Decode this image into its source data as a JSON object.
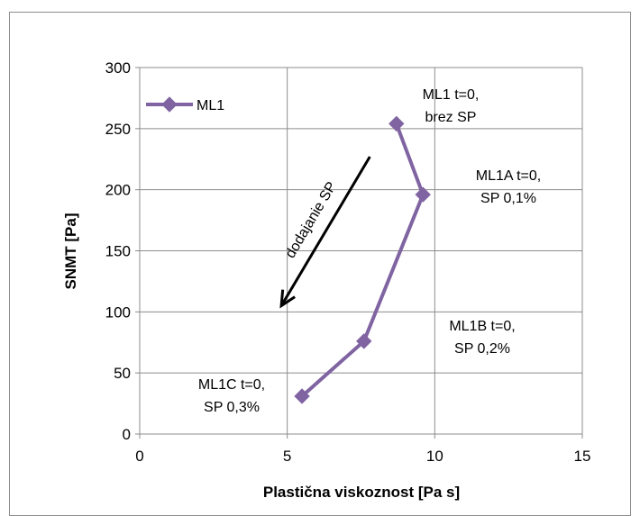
{
  "chart_data": {
    "type": "scatter",
    "xlabel": "Plastična viskoznost [Pa s]",
    "ylabel": "SNMT [Pa]",
    "xlim": [
      0,
      15
    ],
    "ylim": [
      0,
      300
    ],
    "x_ticks": [
      0,
      5,
      10,
      15
    ],
    "y_ticks": [
      0,
      50,
      100,
      150,
      200,
      250,
      300
    ],
    "grid": true,
    "legend_position": "top-left",
    "series": [
      {
        "name": "ML1",
        "color": "#8064a2",
        "marker": "diamond",
        "line": true,
        "points": [
          {
            "x": 8.7,
            "y": 254
          },
          {
            "x": 9.6,
            "y": 196
          },
          {
            "x": 7.6,
            "y": 76
          },
          {
            "x": 5.5,
            "y": 31
          }
        ]
      }
    ],
    "annotations": [
      {
        "lines": [
          "ML1 t=0,",
          "brez SP"
        ]
      },
      {
        "lines": [
          "ML1A t=0,",
          "SP 0,1%"
        ]
      },
      {
        "lines": [
          "ML1B t=0,",
          "SP 0,2%"
        ]
      },
      {
        "lines": [
          "ML1C t=0,",
          "SP 0,3%"
        ]
      }
    ],
    "arrow": {
      "label": "dodajanie SP",
      "from": {
        "x": 7.8,
        "y": 227
      },
      "to": {
        "x": 4.8,
        "y": 105
      }
    }
  }
}
